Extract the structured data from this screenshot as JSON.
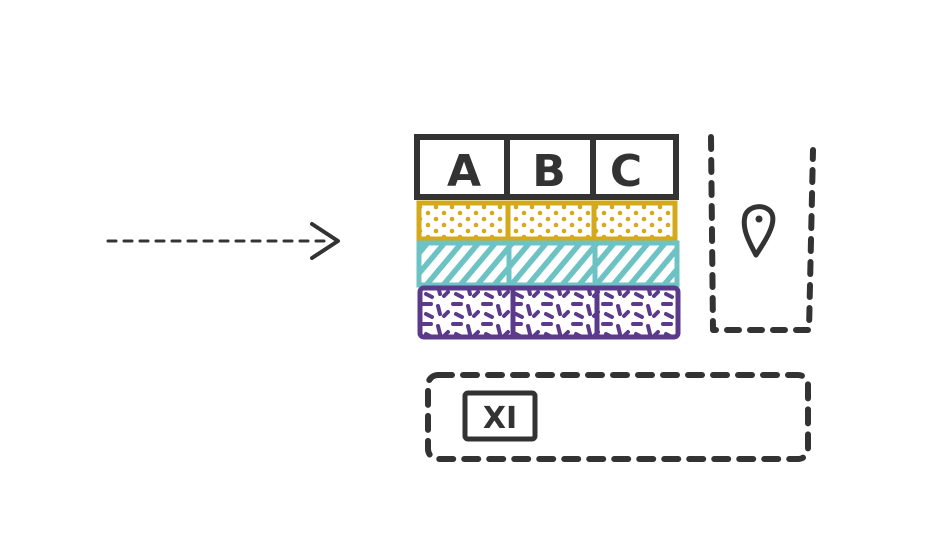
{
  "diagram": {
    "colors": {
      "ink": "#333333",
      "row_dotted": "#d4a91c",
      "row_hatched": "#6dc3c4",
      "row_dashed": "#5b3a8c",
      "background": "#ffffff"
    },
    "table": {
      "headers": [
        "A",
        "B",
        "C"
      ],
      "rows": [
        {
          "pattern": "dots",
          "color_key": "row_dotted"
        },
        {
          "pattern": "hatch",
          "color_key": "row_hatched"
        },
        {
          "pattern": "dashes",
          "color_key": "row_dashed"
        }
      ]
    },
    "sidebar": {
      "icon": "map-pin-icon"
    },
    "footer": {
      "icon": "excel-file-icon",
      "icon_label": "XI"
    },
    "arrow": {
      "icon": "dashed-arrow-right-icon"
    }
  }
}
